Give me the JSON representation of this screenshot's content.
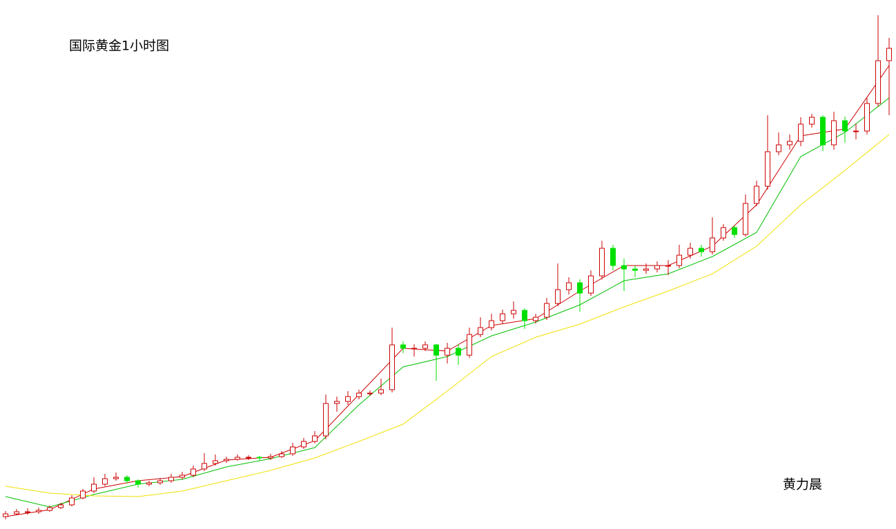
{
  "chart_data": {
    "type": "candlestick",
    "title": "国际黄金1小时图",
    "annotation": "黄力晨",
    "ylim": [
      0,
      767
    ],
    "up_color": "#cc0000",
    "down_color": "#00e000",
    "open": [
      18,
      22,
      25,
      25,
      27,
      31,
      35,
      45,
      55,
      65,
      73,
      75,
      70,
      65,
      67,
      70,
      75,
      78,
      87,
      95,
      99,
      101,
      104,
      104,
      103,
      105,
      109,
      119,
      127,
      135,
      182,
      185,
      192,
      197,
      197,
      202,
      267,
      262,
      262,
      267,
      252,
      262,
      252,
      282,
      292,
      302,
      312,
      317,
      302,
      307,
      327,
      347,
      357,
      342,
      367,
      407,
      382,
      377,
      375,
      377,
      382,
      382,
      397,
      407,
      402,
      422,
      437,
      427,
      472,
      497,
      547,
      557,
      562,
      587,
      597,
      557,
      592,
      577,
      577,
      617,
      679
    ],
    "high": [
      26,
      29,
      30,
      31,
      34,
      38,
      49,
      58,
      75,
      80,
      82,
      78,
      72,
      70,
      74,
      80,
      83,
      92,
      110,
      108,
      105,
      108,
      107,
      106,
      109,
      113,
      125,
      132,
      142,
      195,
      192,
      200,
      202,
      201,
      218,
      292,
      272,
      268,
      272,
      268,
      270,
      268,
      292,
      307,
      312,
      318,
      330,
      320,
      312,
      335,
      385,
      365,
      362,
      375,
      418,
      412,
      392,
      382,
      385,
      388,
      390,
      412,
      415,
      412,
      452,
      442,
      440,
      485,
      505,
      600,
      575,
      572,
      597,
      602,
      600,
      605,
      598,
      588,
      625,
      745,
      712
    ],
    "low": [
      14,
      20,
      21,
      22,
      25,
      29,
      33,
      43,
      52,
      62,
      70,
      66,
      60,
      62,
      64,
      67,
      72,
      75,
      84,
      92,
      96,
      99,
      100,
      99,
      100,
      103,
      106,
      116,
      124,
      130,
      170,
      180,
      188,
      193,
      194,
      198,
      255,
      250,
      258,
      215,
      240,
      238,
      248,
      278,
      288,
      298,
      305,
      290,
      298,
      303,
      323,
      340,
      315,
      338,
      362,
      375,
      345,
      365,
      370,
      372,
      368,
      378,
      392,
      395,
      398,
      418,
      422,
      424,
      468,
      492,
      542,
      550,
      555,
      582,
      548,
      550,
      560,
      565,
      572,
      612,
      600
    ],
    "close": [
      22,
      25,
      25,
      27,
      31,
      35,
      45,
      55,
      65,
      73,
      75,
      70,
      65,
      67,
      70,
      75,
      78,
      87,
      95,
      99,
      101,
      104,
      104,
      103,
      105,
      109,
      119,
      127,
      135,
      182,
      185,
      192,
      197,
      197,
      202,
      267,
      262,
      262,
      267,
      252,
      262,
      252,
      282,
      292,
      302,
      312,
      317,
      302,
      307,
      327,
      347,
      357,
      342,
      367,
      407,
      382,
      377,
      375,
      377,
      382,
      382,
      397,
      407,
      402,
      422,
      437,
      427,
      472,
      497,
      547,
      557,
      562,
      587,
      597,
      557,
      592,
      577,
      577,
      617,
      679,
      697
    ],
    "series": [
      {
        "color": "#cc0000",
        "x": [
          0,
          4,
          8,
          12,
          16,
          20,
          24,
          28,
          32,
          36,
          40,
          44,
          48,
          52,
          56,
          60,
          64,
          68,
          72,
          76,
          80
        ],
        "values": [
          18,
          28,
          58,
          70,
          76,
          100,
          104,
          128,
          195,
          262,
          258,
          295,
          305,
          345,
          382,
          382,
          410,
          470,
          570,
          580,
          672
        ]
      },
      {
        "color": "#00c000",
        "x": [
          0,
          4,
          8,
          12,
          16,
          20,
          24,
          28,
          32,
          36,
          40,
          44,
          48,
          52,
          56,
          60,
          64,
          68,
          72,
          76,
          80
        ],
        "values": [
          47,
          32,
          50,
          65,
          72,
          90,
          102,
          118,
          180,
          235,
          250,
          280,
          300,
          325,
          360,
          370,
          395,
          430,
          540,
          575,
          625
        ]
      },
      {
        "color": "#f0e000",
        "x": [
          0,
          4,
          8,
          12,
          16,
          20,
          24,
          28,
          32,
          36,
          40,
          44,
          48,
          52,
          56,
          60,
          64,
          68,
          72,
          76,
          80
        ],
        "values": [
          62,
          52,
          48,
          47,
          55,
          70,
          85,
          103,
          127,
          152,
          200,
          250,
          278,
          297,
          322,
          345,
          370,
          410,
          470,
          520,
          572
        ]
      }
    ]
  }
}
